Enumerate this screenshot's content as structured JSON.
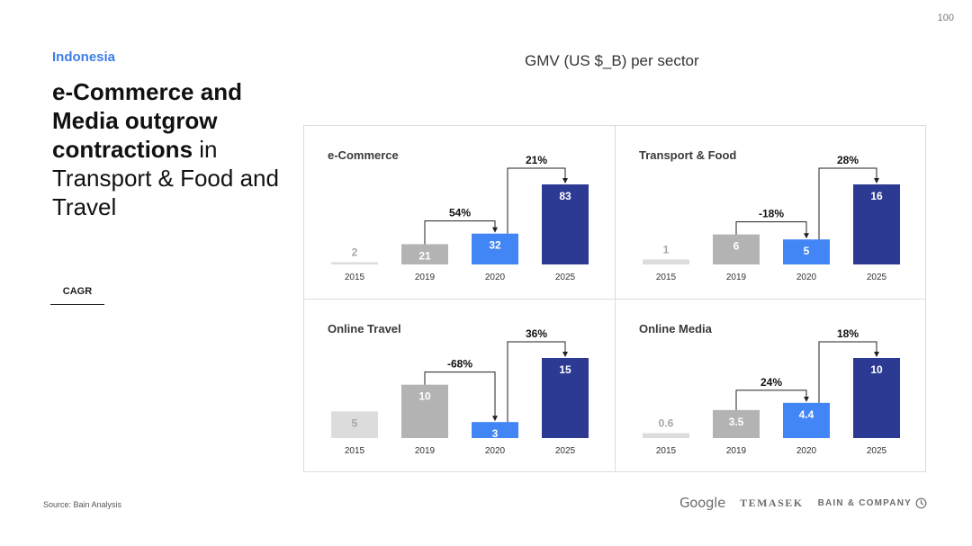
{
  "page_number": "100",
  "kicker": "Indonesia",
  "headline": {
    "bold": "e-Commerce and Media outgrow contractions",
    "regular": " in Transport & Food and Travel"
  },
  "cagr_label": "CAGR",
  "subtitle": "GMV (US $_B) per sector",
  "source": "Source: Bain Analysis",
  "logos": {
    "google": "Google",
    "temasek": "TEMASEK",
    "bain": "BAIN & COMPANY"
  },
  "colors": {
    "bar_2015": "#dcdcdc",
    "bar_2019": "#b3b3b3",
    "bar_2020": "#4285f4",
    "bar_2025": "#2d3a93",
    "kicker": "#3c7ee8"
  },
  "chart_data": [
    {
      "type": "bar",
      "title": "e-Commerce",
      "categories": [
        "2015",
        "2019",
        "2020",
        "2025"
      ],
      "values": [
        2,
        21,
        32,
        83
      ],
      "value_labels": [
        "2",
        "21",
        "32",
        "83"
      ],
      "cagr": [
        {
          "from": "2019",
          "to": "2020",
          "label": "54%"
        },
        {
          "from": "2020",
          "to": "2025",
          "label": "21%"
        }
      ]
    },
    {
      "type": "bar",
      "title": "Transport & Food",
      "categories": [
        "2015",
        "2019",
        "2020",
        "2025"
      ],
      "values": [
        1,
        6,
        5,
        16
      ],
      "value_labels": [
        "1",
        "6",
        "5",
        "16"
      ],
      "cagr": [
        {
          "from": "2019",
          "to": "2020",
          "label": "-18%"
        },
        {
          "from": "2020",
          "to": "2025",
          "label": "28%"
        }
      ]
    },
    {
      "type": "bar",
      "title": "Online Travel",
      "categories": [
        "2015",
        "2019",
        "2020",
        "2025"
      ],
      "values": [
        5,
        10,
        3,
        15
      ],
      "value_labels": [
        "5",
        "10",
        "3",
        "15"
      ],
      "cagr": [
        {
          "from": "2019",
          "to": "2020",
          "label": "-68%"
        },
        {
          "from": "2020",
          "to": "2025",
          "label": "36%"
        }
      ]
    },
    {
      "type": "bar",
      "title": "Online Media",
      "categories": [
        "2015",
        "2019",
        "2020",
        "2025"
      ],
      "values": [
        0.6,
        3.5,
        4.4,
        10
      ],
      "value_labels": [
        "0.6",
        "3.5",
        "4.4",
        "10"
      ],
      "cagr": [
        {
          "from": "2019",
          "to": "2020",
          "label": "24%"
        },
        {
          "from": "2020",
          "to": "2025",
          "label": "18%"
        }
      ]
    }
  ]
}
